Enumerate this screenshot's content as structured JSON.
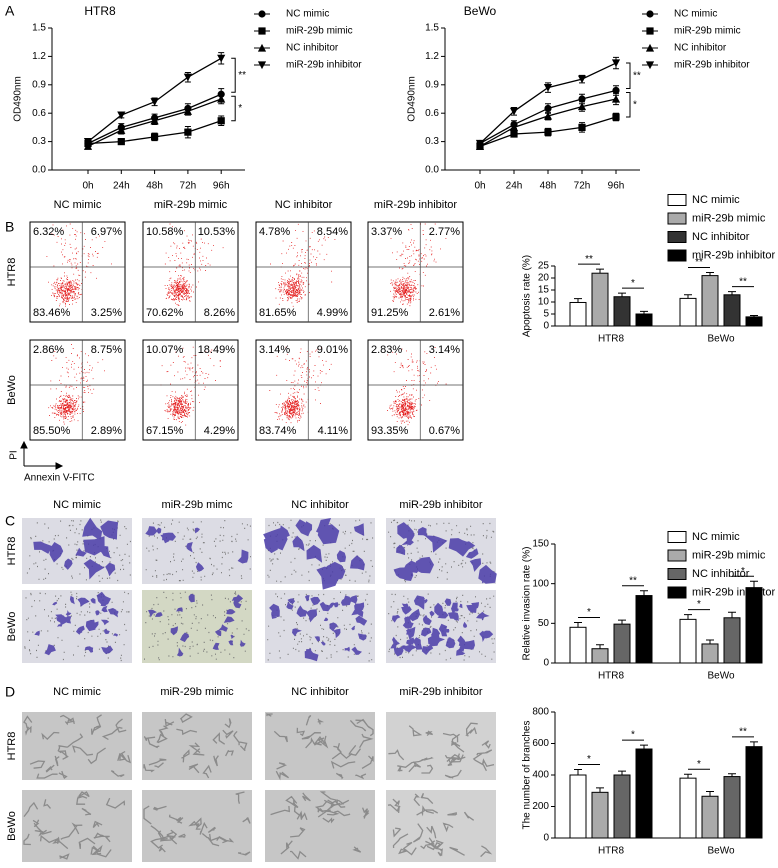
{
  "panel_labels": [
    "A",
    "B",
    "C",
    "D"
  ],
  "chart_data": [
    {
      "type": "line",
      "title": "HTR8",
      "ylabel": "OD490nm",
      "categories": [
        "0h",
        "24h",
        "48h",
        "72h",
        "96h"
      ],
      "ylim": [
        0,
        1.5
      ],
      "yticks": [
        {
          "value": 0,
          "label": "0.0"
        },
        0.3,
        0.6,
        0.9,
        1.2,
        1.5
      ],
      "series": [
        {
          "name": "NC mimic",
          "color": "#000000",
          "marker": "circle",
          "values": [
            0.28,
            0.45,
            0.55,
            0.65,
            0.8
          ],
          "errors": [
            0.03,
            0.04,
            0.04,
            0.05,
            0.06
          ]
        },
        {
          "name": "miR-29b mimic",
          "color": "#000000",
          "marker": "square",
          "values": [
            0.28,
            0.3,
            0.35,
            0.4,
            0.52
          ],
          "errors": [
            0.03,
            0.03,
            0.04,
            0.06,
            0.05
          ]
        },
        {
          "name": "NC inhibitor",
          "color": "#000000",
          "marker": "triangle-up",
          "values": [
            0.25,
            0.42,
            0.52,
            0.62,
            0.75
          ],
          "errors": [
            0.03,
            0.04,
            0.04,
            0.04,
            0.05
          ]
        },
        {
          "name": "miR-29b inhibitor",
          "color": "#000000",
          "marker": "triangle-down",
          "values": [
            0.3,
            0.58,
            0.72,
            0.98,
            1.18
          ],
          "errors": [
            0.03,
            0.03,
            0.04,
            0.05,
            0.06
          ]
        }
      ],
      "annotations": [
        "**",
        "*"
      ]
    },
    {
      "type": "line",
      "title": "BeWo",
      "ylabel": "OD490nm",
      "categories": [
        "0h",
        "24h",
        "48h",
        "72h",
        "96h"
      ],
      "ylim": [
        0,
        1.5
      ],
      "yticks": [
        {
          "value": 0,
          "label": "0.0"
        },
        0.3,
        0.6,
        0.9,
        1.2,
        1.5
      ],
      "series": [
        {
          "name": "NC mimic",
          "color": "#000000",
          "marker": "circle",
          "values": [
            0.28,
            0.48,
            0.65,
            0.75,
            0.84
          ],
          "errors": [
            0.03,
            0.04,
            0.05,
            0.05,
            0.05
          ]
        },
        {
          "name": "miR-29b mimic",
          "color": "#000000",
          "marker": "square",
          "values": [
            0.25,
            0.38,
            0.4,
            0.45,
            0.56
          ],
          "errors": [
            0.03,
            0.03,
            0.04,
            0.05,
            0.04
          ]
        },
        {
          "name": "NC inhibitor",
          "color": "#000000",
          "marker": "triangle-up",
          "values": [
            0.25,
            0.45,
            0.57,
            0.67,
            0.75
          ],
          "errors": [
            0.03,
            0.04,
            0.04,
            0.05,
            0.06
          ]
        },
        {
          "name": "miR-29b inhibitor",
          "color": "#000000",
          "marker": "triangle-down",
          "values": [
            0.28,
            0.62,
            0.87,
            0.96,
            1.13
          ],
          "errors": [
            0.03,
            0.04,
            0.05,
            0.04,
            0.06
          ]
        }
      ],
      "annotations": [
        "**",
        "*"
      ]
    },
    {
      "type": "bar",
      "ylabel": "Apoptosis rate (%)",
      "categories": [
        "HTR8",
        "BeWo"
      ],
      "ylim": [
        0,
        25
      ],
      "yticks": [
        0,
        5,
        10,
        15,
        20,
        25
      ],
      "legend": true,
      "series": [
        {
          "name": "NC mimic",
          "color": "#ffffff",
          "values": [
            9.8,
            11.5
          ],
          "errors": [
            1.6,
            1.5
          ]
        },
        {
          "name": "miR-29b mimic",
          "color": "#aaaaaa",
          "values": [
            22,
            21
          ],
          "errors": [
            1.7,
            1.3
          ]
        },
        {
          "name": "NC inhibitor",
          "color": "#333333",
          "values": [
            12.2,
            13
          ],
          "errors": [
            1.5,
            1.3
          ]
        },
        {
          "name": "miR-29b inhibitor",
          "color": "#000000",
          "values": [
            5,
            3.8
          ],
          "errors": [
            1.1,
            0.6
          ]
        }
      ],
      "annotations": [
        "**",
        "*",
        "**",
        "**"
      ]
    },
    {
      "type": "bar",
      "ylabel": "Relative invasion rate (%)",
      "categories": [
        "HTR8",
        "BeWo"
      ],
      "ylim": [
        0,
        150
      ],
      "yticks": [
        0,
        50,
        100,
        150
      ],
      "legend": true,
      "series": [
        {
          "name": "NC mimic",
          "color": "#ffffff",
          "values": [
            45,
            55
          ],
          "errors": [
            6,
            6
          ]
        },
        {
          "name": "miR-29b mimic",
          "color": "#aaaaaa",
          "values": [
            18,
            24
          ],
          "errors": [
            5,
            5
          ]
        },
        {
          "name": "NC inhibitor",
          "color": "#666666",
          "values": [
            49,
            57
          ],
          "errors": [
            5,
            7
          ]
        },
        {
          "name": "miR-29b inhibitor",
          "color": "#000000",
          "values": [
            85,
            95
          ],
          "errors": [
            6,
            8
          ]
        }
      ],
      "annotations": [
        "*",
        "**",
        "*",
        "*"
      ]
    },
    {
      "type": "bar",
      "ylabel": "The number of branches",
      "categories": [
        "HTR8",
        "BeWo"
      ],
      "ylim": [
        0,
        800
      ],
      "yticks": [
        0,
        200,
        400,
        600,
        800
      ],
      "legend": false,
      "series": [
        {
          "color": "#ffffff",
          "values": [
            400,
            380
          ],
          "errors": [
            35,
            25
          ]
        },
        {
          "color": "#aaaaaa",
          "values": [
            290,
            265
          ],
          "errors": [
            28,
            30
          ]
        },
        {
          "color": "#666666",
          "values": [
            400,
            390
          ],
          "errors": [
            25,
            18
          ]
        },
        {
          "color": "#000000",
          "values": [
            565,
            580
          ],
          "errors": [
            25,
            30
          ]
        }
      ],
      "annotations": [
        "*",
        "*",
        "*",
        "**"
      ]
    }
  ],
  "flow_cytometry": {
    "columns": [
      "NC mimic",
      "miR-29b mimic",
      "NC inhibitor",
      "miR-29b inhibitor"
    ],
    "rows": [
      "HTR8",
      "BeWo"
    ],
    "quadrants": [
      [
        [
          "6.32%",
          "6.97%",
          "83.46%",
          "3.25%"
        ],
        [
          "10.58%",
          "10.53%",
          "70.62%",
          "8.26%"
        ],
        [
          "4.78%",
          "8.54%",
          "81.65%",
          "4.99%"
        ],
        [
          "3.37%",
          "2.77%",
          "91.25%",
          "2.61%"
        ]
      ],
      [
        [
          "2.86%",
          "8.75%",
          "85.50%",
          "2.89%"
        ],
        [
          "10.07%",
          "18.49%",
          "67.15%",
          "4.29%"
        ],
        [
          "3.14%",
          "9.01%",
          "83.74%",
          "4.11%"
        ],
        [
          "2.83%",
          "3.14%",
          "93.35%",
          "0.67%"
        ]
      ]
    ],
    "y_axis": "PI",
    "x_axis": "Annexin V-FITC"
  },
  "transwell": {
    "columns": [
      "NC mimic",
      "miR-29b mimc",
      "NC inhibitor",
      "miR-29b inhibitor"
    ],
    "rows": [
      "HTR8",
      "BeWo"
    ]
  },
  "tube_formation": {
    "columns": [
      "NC mimic",
      "miR-29b mimic",
      "NC inhibitor",
      "miR-29b inhibitor"
    ],
    "rows": [
      "HTR8",
      "BeWo"
    ]
  }
}
